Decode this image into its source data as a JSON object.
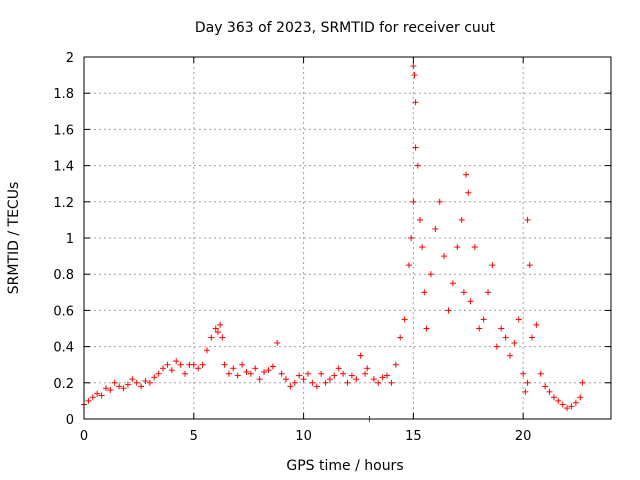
{
  "chart_data": {
    "type": "scatter",
    "title": "Day 363 of 2023, SRMTID for receiver cuut",
    "xlabel": "GPS time / hours",
    "ylabel": "SRMTID / TECUs",
    "xlim": [
      0,
      24
    ],
    "ylim": [
      0,
      2
    ],
    "xticks": [
      0,
      5,
      10,
      15,
      20
    ],
    "xtick_labels": [
      "0",
      "5",
      "10",
      "15",
      "20"
    ],
    "yticks": [
      0,
      0.2,
      0.4,
      0.6,
      0.8,
      1,
      1.2,
      1.4,
      1.6,
      1.8,
      2
    ],
    "ytick_labels": [
      "0",
      "0.2",
      "0.4",
      "0.6",
      "0.8",
      "1",
      "1.2",
      "1.4",
      "1.6",
      "1.8",
      "2"
    ],
    "grid": true,
    "marker": "+",
    "color": "#ff0000",
    "series": [
      {
        "name": "SRMTID",
        "x": [
          0.0,
          0.2,
          0.4,
          0.6,
          0.8,
          1.0,
          1.2,
          1.4,
          1.6,
          1.8,
          2.0,
          2.2,
          2.4,
          2.6,
          2.8,
          3.0,
          3.2,
          3.4,
          3.6,
          3.8,
          4.0,
          4.2,
          4.4,
          4.6,
          4.8,
          5.0,
          5.2,
          5.4,
          5.6,
          5.8,
          6.0,
          6.1,
          6.2,
          6.3,
          6.4,
          6.6,
          6.8,
          7.0,
          7.2,
          7.4,
          7.6,
          7.8,
          8.0,
          8.2,
          8.4,
          8.6,
          8.8,
          9.0,
          9.2,
          9.4,
          9.6,
          9.8,
          10.0,
          10.2,
          10.4,
          10.6,
          10.8,
          11.0,
          11.2,
          11.4,
          11.6,
          11.8,
          12.0,
          12.2,
          12.4,
          12.6,
          12.8,
          12.9,
          13.0,
          13.2,
          13.4,
          13.6,
          13.8,
          14.0,
          14.2,
          14.4,
          14.6,
          14.8,
          14.9,
          15.0,
          15.0,
          15.05,
          15.1,
          15.1,
          15.2,
          15.3,
          15.4,
          15.5,
          15.6,
          15.8,
          16.0,
          16.2,
          16.4,
          16.6,
          16.8,
          17.0,
          17.2,
          17.3,
          17.4,
          17.5,
          17.6,
          17.8,
          18.0,
          18.2,
          18.4,
          18.6,
          18.8,
          19.0,
          19.2,
          19.4,
          19.6,
          19.8,
          20.0,
          20.1,
          20.2,
          20.2,
          20.3,
          20.4,
          20.6,
          20.8,
          21.0,
          21.2,
          21.4,
          21.6,
          21.8,
          22.0,
          22.2,
          22.4,
          22.6,
          22.7
        ],
        "y": [
          0.08,
          0.1,
          0.12,
          0.14,
          0.13,
          0.17,
          0.16,
          0.2,
          0.18,
          0.17,
          0.19,
          0.22,
          0.2,
          0.18,
          0.21,
          0.2,
          0.23,
          0.25,
          0.28,
          0.3,
          0.27,
          0.32,
          0.3,
          0.25,
          0.3,
          0.3,
          0.28,
          0.3,
          0.38,
          0.45,
          0.5,
          0.48,
          0.52,
          0.45,
          0.3,
          0.25,
          0.28,
          0.24,
          0.3,
          0.26,
          0.25,
          0.28,
          0.22,
          0.26,
          0.27,
          0.29,
          0.42,
          0.25,
          0.22,
          0.18,
          0.2,
          0.24,
          0.22,
          0.25,
          0.2,
          0.18,
          0.25,
          0.2,
          0.22,
          0.24,
          0.28,
          0.25,
          0.2,
          0.24,
          0.22,
          0.35,
          0.25,
          0.28,
          0.0,
          0.22,
          0.2,
          0.23,
          0.24,
          0.2,
          0.3,
          0.45,
          0.55,
          0.85,
          1.0,
          1.2,
          1.95,
          1.9,
          1.75,
          1.5,
          1.4,
          1.1,
          0.95,
          0.7,
          0.5,
          0.8,
          1.05,
          1.2,
          0.9,
          0.6,
          0.75,
          0.95,
          1.1,
          0.7,
          1.35,
          1.25,
          0.65,
          0.95,
          0.5,
          0.55,
          0.7,
          0.85,
          0.4,
          0.5,
          0.45,
          0.35,
          0.42,
          0.55,
          0.25,
          0.15,
          0.2,
          1.1,
          0.85,
          0.45,
          0.52,
          0.25,
          0.18,
          0.15,
          0.12,
          0.1,
          0.08,
          0.06,
          0.07,
          0.09,
          0.12,
          0.2
        ]
      }
    ]
  }
}
